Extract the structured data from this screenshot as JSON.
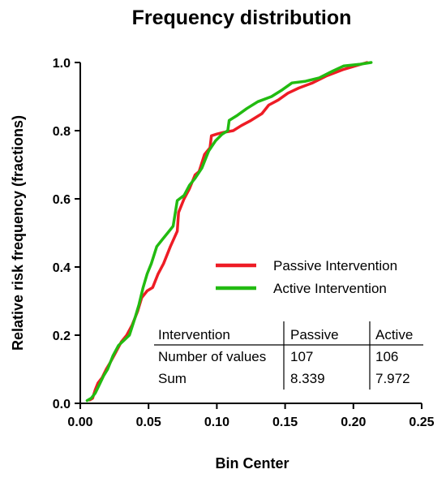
{
  "chart_data": {
    "type": "line",
    "title": "Frequency distribution",
    "xlabel": "Bin Center",
    "ylabel": "Relative risk frequency (fractions)",
    "xlim": [
      0.0,
      0.25
    ],
    "ylim": [
      0.0,
      1.0
    ],
    "x_ticks": [
      "0.00",
      "0.05",
      "0.10",
      "0.15",
      "0.20",
      "0.25"
    ],
    "y_ticks": [
      "0.0",
      "0.2",
      "0.4",
      "0.6",
      "0.8",
      "1.0"
    ],
    "grid": false,
    "legend_position": "center-right",
    "series": [
      {
        "name": "Passive Intervention",
        "color": "#ee1c25",
        "points": [
          [
            0.007,
            0.01
          ],
          [
            0.009,
            0.015
          ],
          [
            0.011,
            0.04
          ],
          [
            0.013,
            0.06
          ],
          [
            0.016,
            0.075
          ],
          [
            0.019,
            0.1
          ],
          [
            0.022,
            0.12
          ],
          [
            0.026,
            0.15
          ],
          [
            0.03,
            0.18
          ],
          [
            0.034,
            0.2
          ],
          [
            0.038,
            0.23
          ],
          [
            0.042,
            0.27
          ],
          [
            0.045,
            0.31
          ],
          [
            0.049,
            0.33
          ],
          [
            0.053,
            0.34
          ],
          [
            0.057,
            0.38
          ],
          [
            0.061,
            0.41
          ],
          [
            0.066,
            0.46
          ],
          [
            0.071,
            0.505
          ],
          [
            0.072,
            0.56
          ],
          [
            0.076,
            0.6
          ],
          [
            0.08,
            0.63
          ],
          [
            0.084,
            0.67
          ],
          [
            0.087,
            0.68
          ],
          [
            0.091,
            0.73
          ],
          [
            0.095,
            0.75
          ],
          [
            0.096,
            0.785
          ],
          [
            0.1,
            0.79
          ],
          [
            0.105,
            0.795
          ],
          [
            0.112,
            0.8
          ],
          [
            0.118,
            0.815
          ],
          [
            0.125,
            0.83
          ],
          [
            0.133,
            0.85
          ],
          [
            0.138,
            0.875
          ],
          [
            0.145,
            0.89
          ],
          [
            0.152,
            0.91
          ],
          [
            0.16,
            0.925
          ],
          [
            0.17,
            0.94
          ],
          [
            0.18,
            0.96
          ],
          [
            0.193,
            0.98
          ],
          [
            0.21,
            1.0
          ]
        ]
      },
      {
        "name": "Active Intervention",
        "color": "#22bb11",
        "points": [
          [
            0.005,
            0.008
          ],
          [
            0.008,
            0.015
          ],
          [
            0.011,
            0.03
          ],
          [
            0.014,
            0.055
          ],
          [
            0.017,
            0.08
          ],
          [
            0.02,
            0.1
          ],
          [
            0.024,
            0.14
          ],
          [
            0.028,
            0.17
          ],
          [
            0.032,
            0.185
          ],
          [
            0.036,
            0.2
          ],
          [
            0.04,
            0.25
          ],
          [
            0.043,
            0.29
          ],
          [
            0.046,
            0.34
          ],
          [
            0.049,
            0.38
          ],
          [
            0.052,
            0.41
          ],
          [
            0.056,
            0.46
          ],
          [
            0.06,
            0.48
          ],
          [
            0.064,
            0.5
          ],
          [
            0.068,
            0.52
          ],
          [
            0.071,
            0.595
          ],
          [
            0.076,
            0.61
          ],
          [
            0.08,
            0.64
          ],
          [
            0.084,
            0.66
          ],
          [
            0.089,
            0.69
          ],
          [
            0.094,
            0.74
          ],
          [
            0.099,
            0.77
          ],
          [
            0.104,
            0.79
          ],
          [
            0.108,
            0.8
          ],
          [
            0.109,
            0.83
          ],
          [
            0.115,
            0.845
          ],
          [
            0.122,
            0.865
          ],
          [
            0.13,
            0.885
          ],
          [
            0.14,
            0.9
          ],
          [
            0.148,
            0.92
          ],
          [
            0.155,
            0.94
          ],
          [
            0.165,
            0.945
          ],
          [
            0.175,
            0.955
          ],
          [
            0.185,
            0.975
          ],
          [
            0.193,
            0.99
          ],
          [
            0.205,
            0.995
          ],
          [
            0.213,
            1.0
          ]
        ]
      }
    ],
    "table": {
      "headers": [
        "Intervention",
        "Passive",
        "Active"
      ],
      "rows": [
        [
          "Number of values",
          "107",
          "106"
        ],
        [
          "Sum",
          "8.339",
          "7.972"
        ]
      ]
    }
  }
}
